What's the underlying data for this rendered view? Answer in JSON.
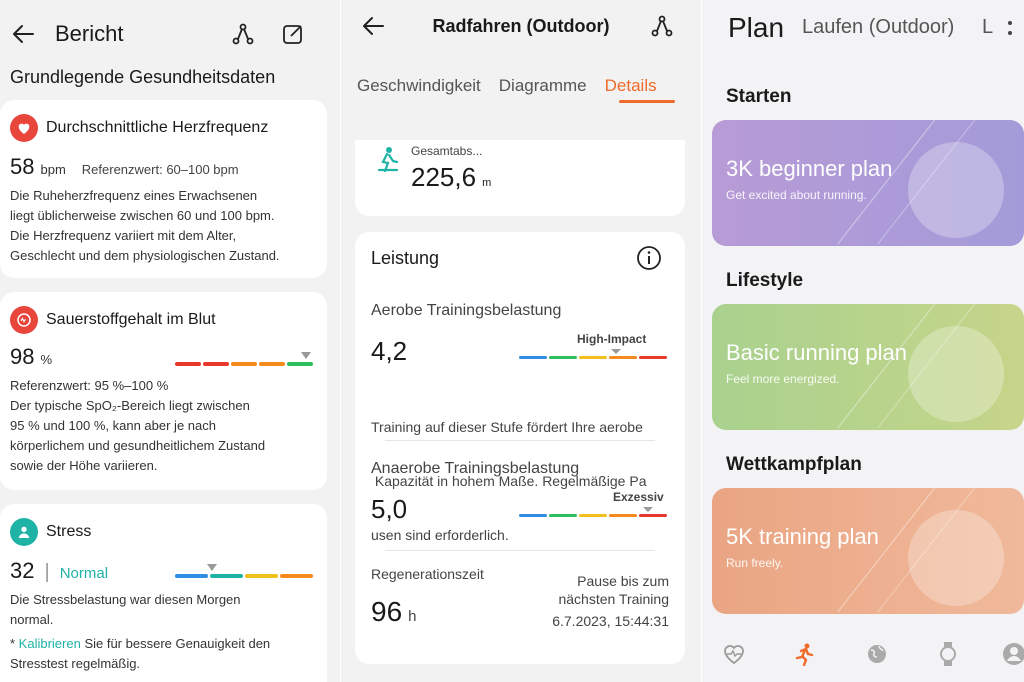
{
  "report": {
    "title": "Bericht",
    "section_title": "Grundlegende Gesundheitsdaten",
    "heart": {
      "label": "Durchschnittliche Herzfrequenz",
      "value": "58",
      "unit": "bpm",
      "reference": "Referenzwert: 60–100 bpm",
      "description": [
        "Die Ruheherzfrequenz eines Erwachsenen",
        "liegt üblicherweise zwischen 60 und 100 bpm.",
        "Die Herzfrequenz variiert mit dem Alter,",
        "Geschlecht und dem physiologischen Zustand."
      ]
    },
    "oxygen": {
      "label": "Sauerstoffgehalt im Blut",
      "value": "98",
      "unit": "%",
      "description": [
        "Referenzwert: 95 %–100 %",
        "Der typische SpO₂-Bereich liegt zwischen",
        "95 % und 100 %, kann aber je nach",
        "körperlichem und gesundheitlichem Zustand",
        "sowie der Höhe variieren."
      ]
    },
    "stress": {
      "label": "Stress",
      "value": "32",
      "separator": "|",
      "status": "Normal",
      "description": [
        "Die Stressbelastung war diesen Morgen",
        "normal."
      ],
      "note_prefix": "* ",
      "note_link": "Kalibrieren",
      "note_rest": " Sie für bessere Genauigkeit den",
      "note_line2": "Stresstest regelmäßig."
    }
  },
  "workout": {
    "title": "Radfahren (Outdoor)",
    "tabs": [
      "Geschwindigkeit",
      "Diagramme",
      "Details"
    ],
    "active_tab": "Details",
    "ascent": {
      "label": "Gesamtabs...",
      "value": "225,6",
      "unit": "m"
    },
    "performance": {
      "title": "Leistung",
      "info_icon": "info-icon",
      "aerobic": {
        "label": "Aerobe Trainingsbelastung",
        "value": "4,2",
        "level": "High-Impact",
        "description": [
          "Training auf dieser Stufe fördert Ihre aerobe",
          " Kapazität in hohem Maße. Regelmäßige Pa",
          "usen sind erforderlich."
        ]
      },
      "anaerobic": {
        "label": "Anaerobe Trainingsbelastung",
        "value": "5,0",
        "level": "Exzessiv"
      },
      "recovery": {
        "label": "Regenerationszeit",
        "value": "96",
        "unit": "h",
        "note_line1": "Pause bis zum",
        "note_line2": "nächsten Training",
        "timestamp": "6.7.2023, 15:44:31"
      }
    }
  },
  "plan": {
    "title": "Plan",
    "subtitle": "Laufen (Outdoor)",
    "overflow_letter": "L",
    "groups": [
      {
        "name": "Starten",
        "card_title": "3K beginner plan",
        "card_subtitle": "Get excited about running.",
        "color_from": "#b79bd6",
        "color_to": "#a39bd9"
      },
      {
        "name": "Lifestyle",
        "card_title": "Basic running plan",
        "card_subtitle": "Feel more energized.",
        "color_from": "#a9d18e",
        "color_to": "#c6d58a"
      },
      {
        "name": "Wettkampfplan",
        "card_title": "5K training plan",
        "card_subtitle": "Run freely.",
        "color_from": "#eaa583",
        "color_to": "#f0b99b"
      }
    ],
    "nav": [
      "heart-icon",
      "running-icon",
      "globe-icon",
      "watch-icon",
      "profile-icon"
    ]
  },
  "colors": {
    "accent": "#f06a2a",
    "teal": "#1fb3a6",
    "bar": [
      "#2f8de4",
      "#2dbf5f",
      "#f2c01c",
      "#f58a1f",
      "#e8372c"
    ]
  }
}
